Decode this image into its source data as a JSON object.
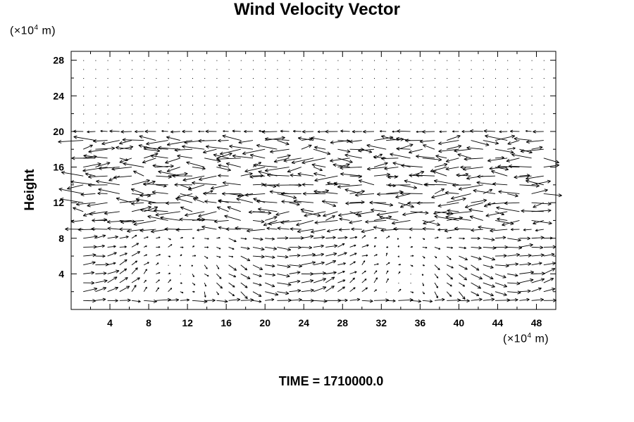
{
  "title": "Wind Velocity Vector",
  "y_unit": {
    "prefix": "(×10",
    "exp": "4",
    "suffix": " m)"
  },
  "x_unit": {
    "prefix": "(×10",
    "exp": "4",
    "suffix": " m)"
  },
  "ylabel": "Height",
  "time_label": "TIME = 1710000.0",
  "chart_data": {
    "type": "quiver",
    "title": "Wind Velocity Vector",
    "xlabel": "",
    "ylabel": "Height",
    "x_unit": "×10^4 m",
    "y_unit": "×10^4 m",
    "xlim": [
      0,
      50
    ],
    "ylim": [
      0,
      29
    ],
    "x_ticks": [
      4,
      8,
      12,
      16,
      20,
      24,
      28,
      32,
      36,
      40,
      44,
      48
    ],
    "y_ticks": [
      4,
      8,
      12,
      16,
      20,
      24,
      28
    ],
    "grid": false,
    "field_description_values": {
      "upper_calm_layer": {
        "y_range": [
          21,
          29
        ],
        "speed": "near zero"
      },
      "jet_layer": {
        "y_range": [
          10,
          20
        ],
        "dominant_direction": "westward (negative u)",
        "max_relative_length": 1.0
      },
      "lower_layer": {
        "y_range": [
          0,
          9
        ],
        "pattern": "circulation cells with eastward/upward flow"
      }
    },
    "grid_spacing_x": 1.25,
    "grid_spacing_y": 1.0
  }
}
